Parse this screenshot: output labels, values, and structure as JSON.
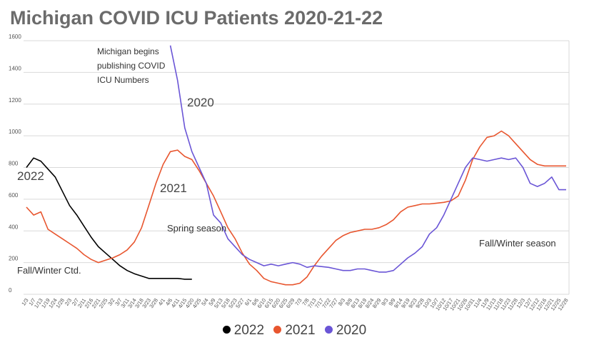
{
  "chart_data": {
    "type": "line",
    "title": "Michigan COVID ICU Patients 2020-21-22",
    "xlabel": "",
    "ylabel": "",
    "ylim": [
      0,
      1600
    ],
    "yticks": [
      0,
      200,
      400,
      600,
      800,
      1000,
      1200,
      1400,
      1600
    ],
    "grid": true,
    "legend_position": "bottom",
    "x_tick_labels": [
      "1/3",
      "1/7",
      "1/13",
      "1/19",
      "1/24",
      "1/28",
      "2/3",
      "2/7",
      "2/11",
      "2/16",
      "2/21",
      "2/25",
      "3/2",
      "3/7",
      "3/11",
      "3/14",
      "3/18",
      "3/23",
      "3/28",
      "4/1",
      "4/6",
      "4/11",
      "4/15",
      "4/20",
      "4/25",
      "5/4",
      "5/9",
      "5/13",
      "5/18",
      "5/23",
      "5/27",
      "6/1",
      "6/6",
      "6/10",
      "6/15",
      "6/20",
      "6/25",
      "6/29",
      "7/3",
      "7/8",
      "7/13",
      "7/17",
      "7/22",
      "7/27",
      "8/3",
      "8/8",
      "8/13",
      "8/19",
      "8/24",
      "8/29",
      "9/3",
      "9/9",
      "9/14",
      "9/19",
      "9/23",
      "9/28",
      "10/3",
      "10/7",
      "10/12",
      "10/17",
      "10/21",
      "10/26",
      "10/31",
      "11/4",
      "11/9",
      "11/13",
      "11/18",
      "11/23",
      "11/28",
      "12/3",
      "12/7",
      "12/12",
      "12/16",
      "12/21",
      "12/25",
      "12/28"
    ],
    "series": [
      {
        "name": "2022",
        "color": "#000000",
        "x": [
          0,
          1,
          2,
          3,
          4,
          5,
          6,
          7,
          8,
          9,
          10,
          11,
          12,
          13,
          14,
          15,
          16,
          17,
          18,
          19,
          20,
          21,
          22,
          23
        ],
        "y": [
          800,
          860,
          840,
          790,
          740,
          650,
          560,
          500,
          430,
          360,
          300,
          260,
          220,
          180,
          150,
          130,
          115,
          100,
          100,
          100,
          100,
          100,
          95,
          95
        ]
      },
      {
        "name": "2021",
        "color": "#e8562f",
        "x": [
          0,
          1,
          2,
          3,
          4,
          5,
          6,
          7,
          8,
          9,
          10,
          11,
          12,
          13,
          14,
          15,
          16,
          17,
          18,
          19,
          20,
          21,
          22,
          23,
          24,
          25,
          26,
          27,
          28,
          29,
          30,
          31,
          32,
          33,
          34,
          35,
          36,
          37,
          38,
          39,
          40,
          41,
          42,
          43,
          44,
          45,
          46,
          47,
          48,
          49,
          50,
          51,
          52,
          53,
          54,
          55,
          56,
          57,
          58,
          59,
          60,
          61,
          62,
          63,
          64,
          65,
          66,
          67,
          68,
          69,
          70,
          71,
          72,
          73,
          74,
          75
        ],
        "y": [
          550,
          500,
          520,
          410,
          380,
          350,
          320,
          290,
          250,
          220,
          200,
          215,
          230,
          250,
          280,
          330,
          420,
          560,
          700,
          820,
          900,
          910,
          870,
          850,
          780,
          700,
          620,
          520,
          420,
          350,
          260,
          190,
          150,
          100,
          80,
          70,
          60,
          60,
          70,
          110,
          180,
          240,
          290,
          340,
          370,
          390,
          400,
          410,
          410,
          420,
          440,
          470,
          520,
          550,
          560,
          570,
          570,
          575,
          580,
          590,
          620,
          720,
          850,
          930,
          990,
          1000,
          1030,
          1000,
          950,
          900,
          850,
          820,
          810,
          810,
          810,
          810
        ]
      },
      {
        "name": "2020",
        "color": "#6a55d6",
        "x": [
          20,
          21,
          22,
          23,
          24,
          25,
          26,
          27,
          28,
          29,
          30,
          31,
          32,
          33,
          34,
          35,
          36,
          37,
          38,
          39,
          40,
          41,
          42,
          43,
          44,
          45,
          46,
          47,
          48,
          49,
          50,
          51,
          52,
          53,
          54,
          55,
          56,
          57,
          58,
          59,
          60,
          61,
          62,
          63,
          64,
          65,
          66,
          67,
          68,
          69,
          70,
          71,
          72,
          73,
          74,
          75
        ],
        "y": [
          1570,
          1350,
          1050,
          900,
          800,
          700,
          500,
          450,
          350,
          300,
          250,
          220,
          200,
          180,
          190,
          180,
          190,
          200,
          190,
          170,
          180,
          175,
          170,
          160,
          150,
          150,
          160,
          160,
          150,
          140,
          140,
          150,
          190,
          230,
          260,
          300,
          380,
          420,
          500,
          600,
          700,
          800,
          860,
          850,
          840,
          850,
          860,
          850,
          860,
          800,
          700,
          680,
          700,
          740,
          660,
          660
        ]
      }
    ],
    "annotations": {
      "michigan_begins": [
        "Michigan begins",
        "publishing  COVID",
        "ICU Numbers"
      ],
      "label_2020": "2020",
      "label_2021": "2021",
      "label_2022": "2022",
      "spring": "Spring season",
      "fall_winter": "Fall/Winter season",
      "fall_winter_ctd": "Fall/Winter Ctd."
    }
  }
}
